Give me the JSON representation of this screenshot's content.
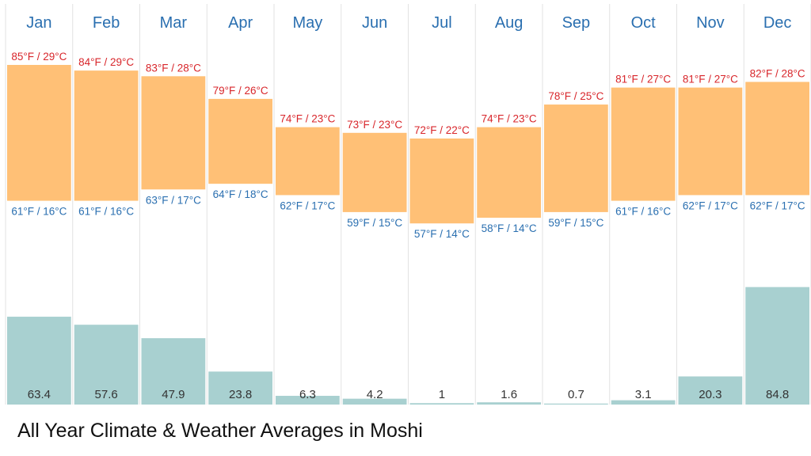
{
  "caption": "All Year Climate & Weather Averages in Moshi",
  "chart_data": {
    "type": "bar",
    "categories": [
      "Jan",
      "Feb",
      "Mar",
      "Apr",
      "May",
      "Jun",
      "Jul",
      "Aug",
      "Sep",
      "Oct",
      "Nov",
      "Dec"
    ],
    "title": "",
    "xlabel": "",
    "ylabel": "",
    "grid": false,
    "colors": {
      "temp_range": "#ffc076",
      "precip": "#a8d0d0",
      "high_text": "#d8262b",
      "low_text": "#2a6fb0",
      "month_text": "#2a6fb0",
      "divider": "#e2e2e2"
    },
    "series": [
      {
        "name": "",
        "role": "high-temperature",
        "values_f": [
          85,
          84,
          83,
          79,
          74,
          73,
          72,
          74,
          78,
          81,
          81,
          82
        ],
        "labels": [
          "85°F / 29°C",
          "84°F / 29°C",
          "83°F / 28°C",
          "79°F / 26°C",
          "74°F / 23°C",
          "73°F / 23°C",
          "72°F / 22°C",
          "74°F / 23°C",
          "78°F / 25°C",
          "81°F / 27°C",
          "81°F / 27°C",
          "82°F / 28°C"
        ]
      },
      {
        "name": "",
        "role": "low-temperature",
        "values_f": [
          61,
          61,
          63,
          64,
          62,
          59,
          57,
          58,
          59,
          61,
          62,
          62
        ],
        "labels": [
          "61°F / 16°C",
          "61°F / 16°C",
          "63°F / 17°C",
          "64°F / 18°C",
          "62°F / 17°C",
          "59°F / 15°C",
          "57°F / 14°C",
          "58°F / 14°C",
          "59°F / 15°C",
          "61°F / 16°C",
          "62°F / 17°C",
          "62°F / 17°C"
        ]
      },
      {
        "name": "",
        "role": "precipitation",
        "values": [
          63.4,
          57.6,
          47.9,
          23.8,
          6.3,
          4.2,
          1,
          1.6,
          0.7,
          3.1,
          20.3,
          84.8
        ],
        "labels": [
          "63.4",
          "57.6",
          "47.9",
          "23.8",
          "6.3",
          "4.2",
          "1",
          "1.6",
          "0.7",
          "3.1",
          "20.3",
          "84.8"
        ]
      }
    ]
  }
}
